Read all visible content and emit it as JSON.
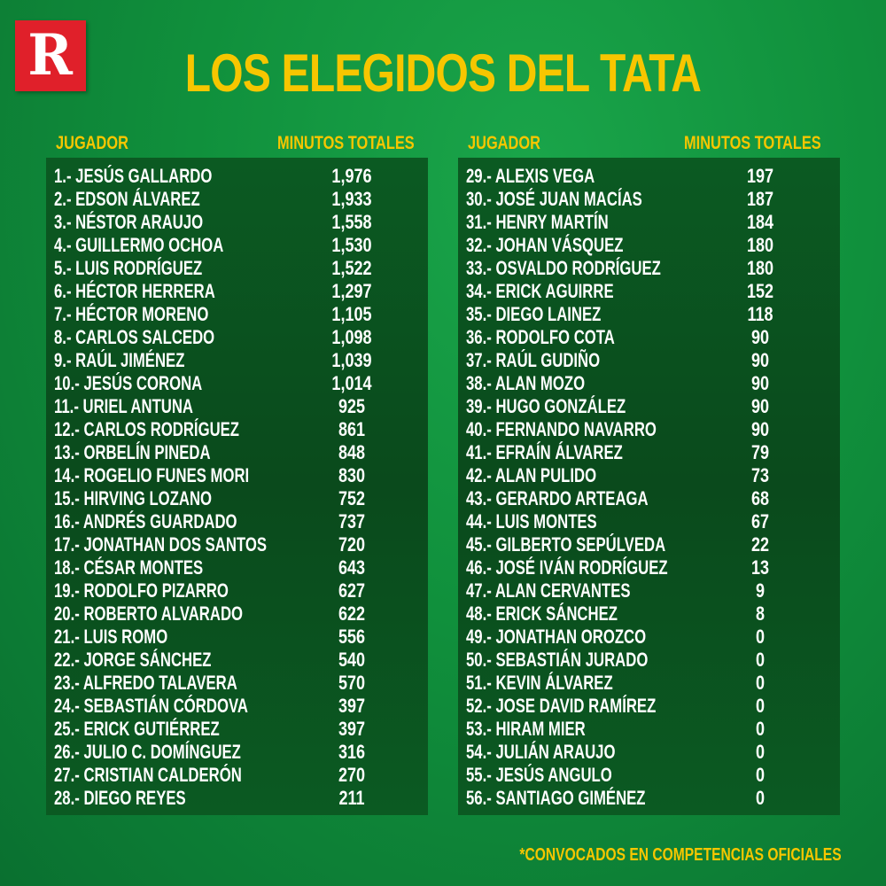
{
  "logo": "R",
  "title": "LOS ELEGIDOS DEL TATA",
  "columns": {
    "player": "JUGADOR",
    "minutes": "MINUTOS TOTALES"
  },
  "left": [
    [
      "1.- JESÚS GALLARDO",
      "1,976"
    ],
    [
      "2.- EDSON ÁLVAREZ",
      "1,933"
    ],
    [
      "3.- NÉSTOR ARAUJO",
      "1,558"
    ],
    [
      "4.- GUILLERMO OCHOA",
      "1,530"
    ],
    [
      "5.- LUIS RODRÍGUEZ",
      "1,522"
    ],
    [
      "6.- HÉCTOR HERRERA",
      "1,297"
    ],
    [
      "7.- HÉCTOR MORENO",
      "1,105"
    ],
    [
      "8.- CARLOS SALCEDO",
      "1,098"
    ],
    [
      "9.- RAÚL JIMÉNEZ",
      "1,039"
    ],
    [
      "10.- JESÚS CORONA",
      "1,014"
    ],
    [
      "11.- URIEL ANTUNA",
      "925"
    ],
    [
      "12.- CARLOS RODRÍGUEZ",
      "861"
    ],
    [
      "13.- ORBELÍN PINEDA",
      "848"
    ],
    [
      "14.- ROGELIO FUNES MORI",
      "830"
    ],
    [
      "15.- HIRVING LOZANO",
      "752"
    ],
    [
      "16.- ANDRÉS GUARDADO",
      "737"
    ],
    [
      "17.- JONATHAN DOS SANTOS",
      "720"
    ],
    [
      "18.- CÉSAR MONTES",
      "643"
    ],
    [
      "19.- RODOLFO PIZARRO",
      "627"
    ],
    [
      "20.- ROBERTO ALVARADO",
      "622"
    ],
    [
      "21.- LUIS ROMO",
      "556"
    ],
    [
      "22.- JORGE SÁNCHEZ",
      "540"
    ],
    [
      "23.- ALFREDO TALAVERA",
      "570"
    ],
    [
      "24.- SEBASTIÁN CÓRDOVA",
      "397"
    ],
    [
      "25.- ERICK GUTIÉRREZ",
      "397"
    ],
    [
      "26.- JULIO C. DOMÍNGUEZ",
      "316"
    ],
    [
      "27.- CRISTIAN CALDERÓN",
      "270"
    ],
    [
      "28.- DIEGO REYES",
      "211"
    ]
  ],
  "right": [
    [
      "29.- ALEXIS VEGA",
      "197"
    ],
    [
      "30.- JOSÉ JUAN MACÍAS",
      "187"
    ],
    [
      "31.- HENRY MARTÍN",
      "184"
    ],
    [
      "32.- JOHAN VÁSQUEZ",
      "180"
    ],
    [
      "33.- OSVALDO RODRÍGUEZ",
      "180"
    ],
    [
      "34.- ERICK AGUIRRE",
      "152"
    ],
    [
      "35.- DIEGO LAINEZ",
      "118"
    ],
    [
      "36.- RODOLFO COTA",
      "90"
    ],
    [
      "37.- RAÚL GUDIÑO",
      "90"
    ],
    [
      "38.- ALAN MOZO",
      "90"
    ],
    [
      "39.- HUGO GONZÁLEZ",
      "90"
    ],
    [
      "40.- FERNANDO NAVARRO",
      "90"
    ],
    [
      "41.- EFRAÍN ÁLVAREZ",
      "79"
    ],
    [
      "42.- ALAN PULIDO",
      "73"
    ],
    [
      "43.- GERARDO ARTEAGA",
      "68"
    ],
    [
      "44.- LUIS MONTES",
      "67"
    ],
    [
      "45.- GILBERTO SEPÚLVEDA",
      "22"
    ],
    [
      "46.- JOSÉ IVÁN RODRÍGUEZ",
      "13"
    ],
    [
      "47.- ALAN CERVANTES",
      "9"
    ],
    [
      "48.- ERICK SÁNCHEZ",
      "8"
    ],
    [
      "49.- JONATHAN OROZCO",
      "0"
    ],
    [
      "50.- SEBASTIÁN JURADO",
      "0"
    ],
    [
      "51.- KEVIN ÁLVAREZ",
      "0"
    ],
    [
      "52.- JOSE DAVID RAMÍREZ",
      "0"
    ],
    [
      "53.- HIRAM MIER",
      "0"
    ],
    [
      "54.- JULIÁN ARAUJO",
      "0"
    ],
    [
      "55.- JESÚS ANGULO",
      "0"
    ],
    [
      "56.- SANTIAGO GIMÉNEZ",
      "0"
    ]
  ],
  "footnote": "*CONVOCADOS EN COMPETENCIAS OFICIALES",
  "colors": {
    "accent": "#f7c600",
    "logo": "#e0202a",
    "background": "#10903c",
    "panel": "#0a4a1c"
  }
}
